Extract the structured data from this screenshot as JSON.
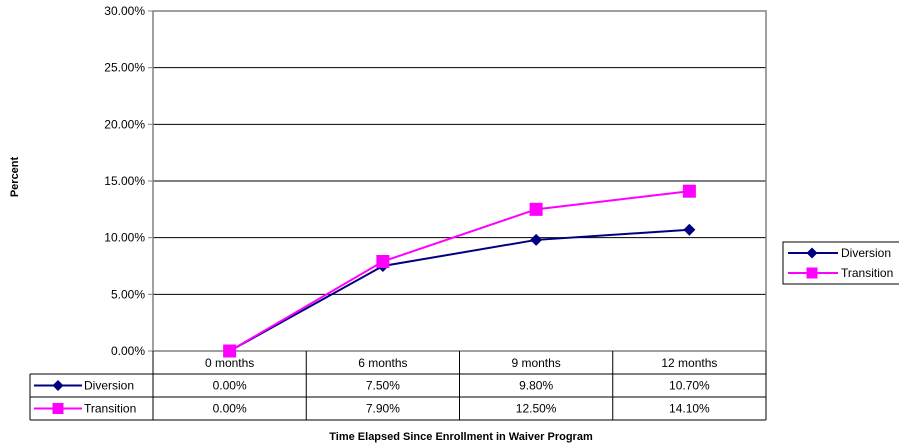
{
  "chart_data": {
    "type": "line",
    "title": "",
    "xlabel": "Time Elapsed Since Enrollment in Waiver Program",
    "ylabel": "Percent",
    "ylim": [
      0,
      30
    ],
    "y_ticks": [
      "0.00%",
      "5.00%",
      "10.00%",
      "15.00%",
      "20.00%",
      "25.00%",
      "30.00%"
    ],
    "categories": [
      "0 months",
      "6 months",
      "9 months",
      "12 months"
    ],
    "grid": true,
    "legend": "right",
    "data_table": true,
    "series": [
      {
        "name": "Diversion",
        "values": [
          0.0,
          7.5,
          9.8,
          10.7
        ],
        "labels": [
          "0.00%",
          "7.50%",
          "9.80%",
          "10.70%"
        ],
        "color": "#000080",
        "marker": "diamond"
      },
      {
        "name": "Transition",
        "values": [
          0.0,
          7.9,
          12.5,
          14.1
        ],
        "labels": [
          "0.00%",
          "7.90%",
          "12.50%",
          "14.10%"
        ],
        "color": "#FF00FF",
        "marker": "square"
      }
    ]
  }
}
